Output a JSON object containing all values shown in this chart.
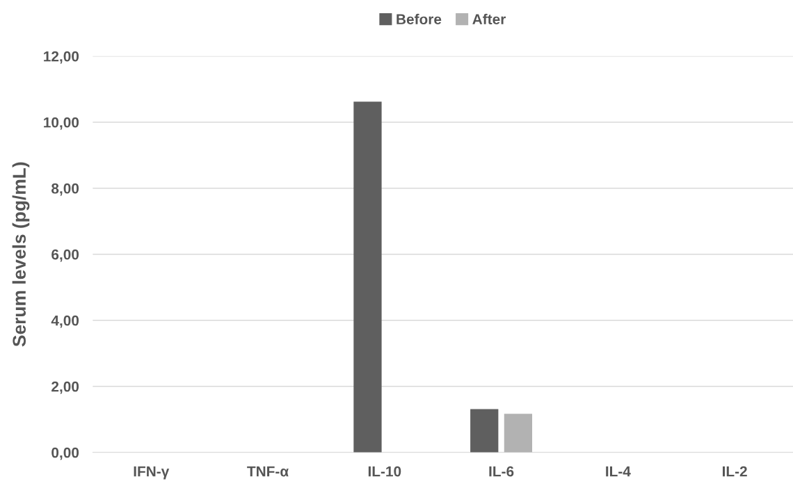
{
  "chart_data": {
    "type": "bar",
    "ylabel": "Serum levels (pg/mL)",
    "categories": [
      "IFN-γ",
      "TNF-α",
      "IL-10",
      "IL-6",
      "IL-4",
      "IL-2"
    ],
    "series": [
      {
        "name": "Before",
        "color": "#5f5f5f",
        "values": [
          0,
          0,
          10.62,
          1.31,
          0,
          0
        ]
      },
      {
        "name": "After",
        "color": "#b2b2b2",
        "values": [
          0,
          0,
          0,
          1.17,
          0,
          0
        ]
      }
    ],
    "ylim": [
      0,
      12
    ],
    "yticks": [
      {
        "value": 0,
        "label": "0,00"
      },
      {
        "value": 2,
        "label": "2,00"
      },
      {
        "value": 4,
        "label": "4,00"
      },
      {
        "value": 6,
        "label": "6,00"
      },
      {
        "value": 8,
        "label": "8,00"
      },
      {
        "value": 10,
        "label": "10,00"
      },
      {
        "value": 12,
        "label": "12,00"
      }
    ],
    "grid": "y",
    "legend": "top"
  }
}
